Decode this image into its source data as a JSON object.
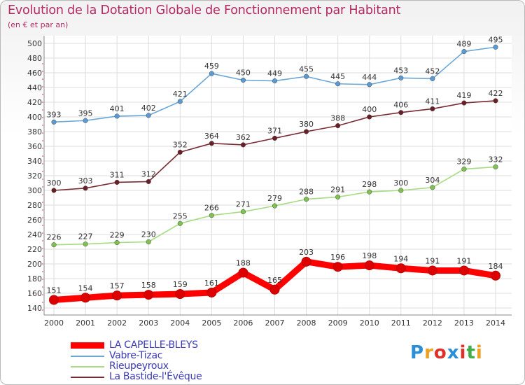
{
  "title": "Evolution de la Dotation Globale de Fonctionnement par Habitant",
  "subtitle": "(en € et par an)",
  "logo": {
    "text": "Proxiti",
    "letters": [
      {
        "ch": "P",
        "color": "#2a8fd6"
      },
      {
        "ch": "r",
        "color": "#f0a020"
      },
      {
        "ch": "o",
        "color": "#e0302a"
      },
      {
        "ch": "x",
        "color": "#2a8fd6"
      },
      {
        "ch": "i",
        "color": "#e0302a"
      },
      {
        "ch": "t",
        "color": "#3fae49"
      },
      {
        "ch": "i",
        "color": "#f0a020"
      }
    ]
  },
  "chart_data": {
    "type": "line",
    "title": "Evolution de la Dotation Globale de Fonctionnement par Habitant",
    "subtitle": "(en € et par an)",
    "xlabel": "",
    "ylabel": "",
    "ylim": [
      140,
      500
    ],
    "ytick_step": 20,
    "grid": true,
    "legend_position": "bottom-left",
    "categories": [
      "2000",
      "2001",
      "2002",
      "2003",
      "2004",
      "2005",
      "2006",
      "2007",
      "2008",
      "2009",
      "2010",
      "2011",
      "2012",
      "2013",
      "2014"
    ],
    "series": [
      {
        "name": "LA CAPELLE-BLEYS",
        "color": "#ff0000",
        "marker_color": "#dd0000",
        "thick": true,
        "values": [
          151,
          154,
          157,
          158,
          159,
          161,
          188,
          165,
          203,
          196,
          198,
          194,
          191,
          191,
          184
        ]
      },
      {
        "name": "Vabre-Tizac",
        "color": "#6aa6d6",
        "marker_color": "#5b9bd5",
        "thick": false,
        "values": [
          393,
          395,
          401,
          402,
          421,
          459,
          450,
          449,
          455,
          445,
          444,
          453,
          452,
          489,
          495
        ]
      },
      {
        "name": "Rieupeyroux",
        "color": "#a6dc82",
        "marker_color": "#7fc24f",
        "thick": false,
        "values": [
          226,
          227,
          229,
          230,
          255,
          266,
          271,
          279,
          288,
          291,
          298,
          300,
          304,
          329,
          332
        ]
      },
      {
        "name": "La Bastide-l'Évêque",
        "color": "#7a2a32",
        "marker_color": "#6a1f28",
        "thick": false,
        "values": [
          300,
          303,
          311,
          312,
          352,
          364,
          362,
          371,
          380,
          388,
          400,
          406,
          411,
          419,
          422
        ]
      }
    ]
  }
}
